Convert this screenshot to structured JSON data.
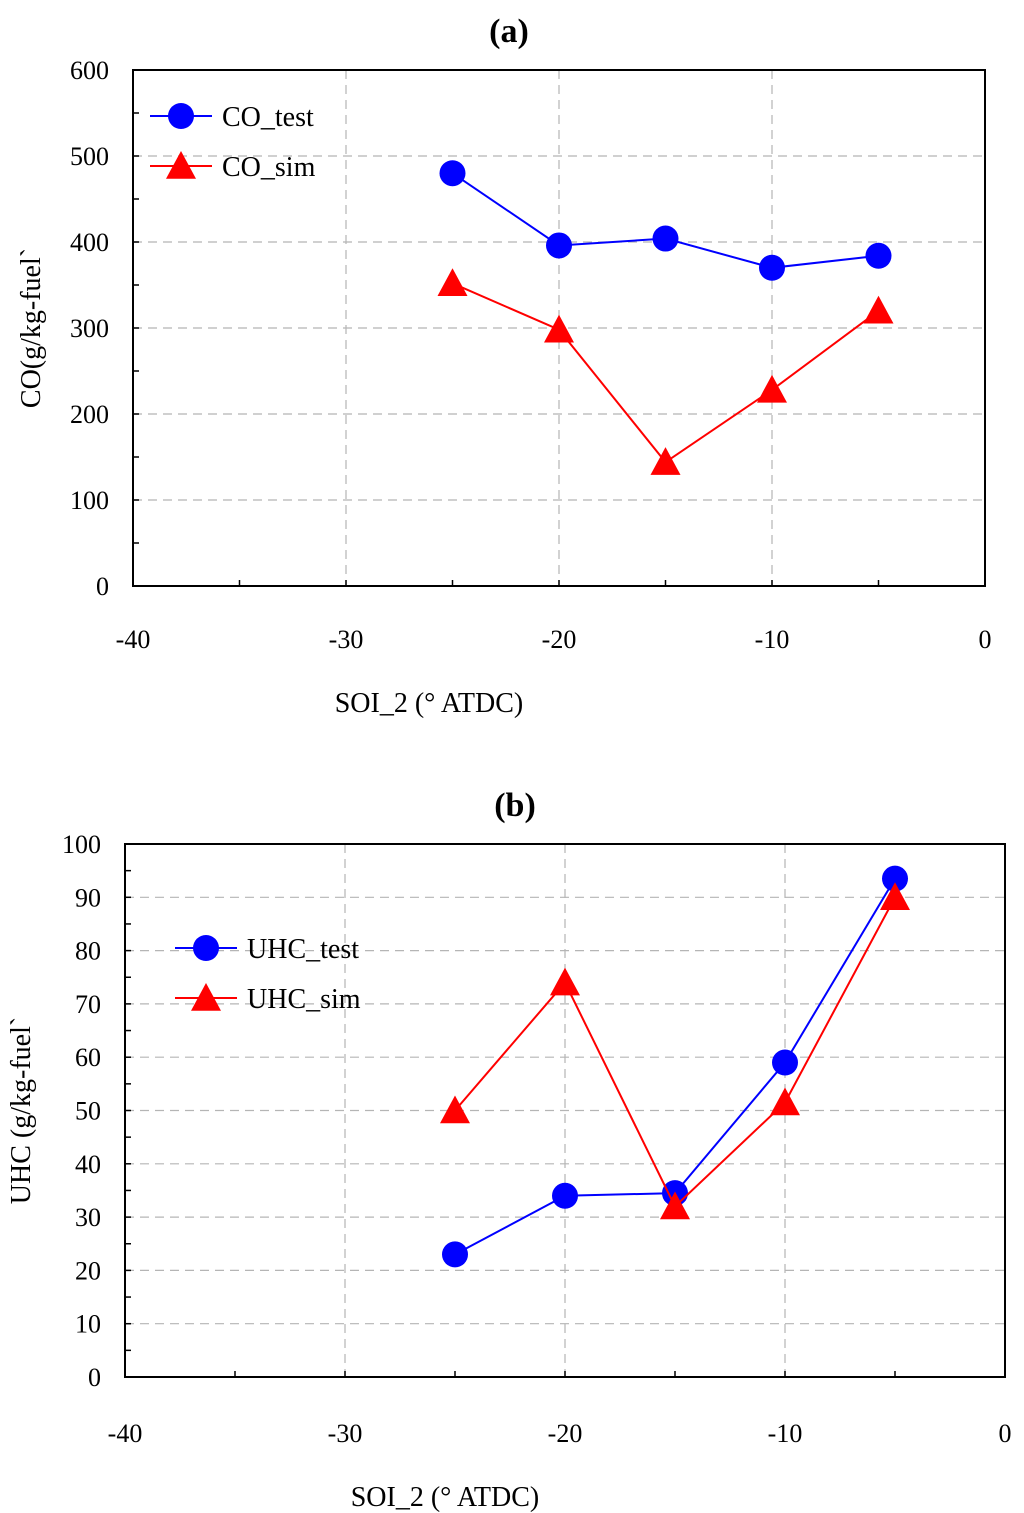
{
  "chart_data": [
    {
      "panel_label": "(a)",
      "type": "line",
      "xlabel": "SOI_2 (° ATDC)",
      "ylabel": "CO(g/kg-fuel`",
      "xlim": [
        -40,
        0
      ],
      "ylim": [
        0,
        600
      ],
      "xticks": [
        "-40",
        "-30",
        "-20",
        "-10",
        "0"
      ],
      "yticks": [
        "0",
        "100",
        "200",
        "300",
        "400",
        "500",
        "600"
      ],
      "x_tick_values": [
        -40,
        -30,
        -20,
        -10,
        0
      ],
      "y_tick_values": [
        0,
        100,
        200,
        300,
        400,
        500,
        600
      ],
      "grid": "dashed",
      "legend_position": "top-left",
      "series": [
        {
          "name": "CO_test",
          "marker": "circle",
          "color": "#0000ff",
          "x": [
            -25,
            -20,
            -15,
            -10,
            -5
          ],
          "y": [
            480,
            396,
            404,
            370,
            384
          ]
        },
        {
          "name": "CO_sim",
          "marker": "triangle",
          "color": "#ff0000",
          "x": [
            -25,
            -20,
            -15,
            -10,
            -5
          ],
          "y": [
            352,
            298,
            144,
            228,
            320
          ]
        }
      ]
    },
    {
      "panel_label": "(b)",
      "type": "line",
      "xlabel": "SOI_2 (° ATDC)",
      "ylabel": "UHC (g/kg-fuel`",
      "xlim": [
        -40,
        0
      ],
      "ylim": [
        0,
        100
      ],
      "xticks": [
        "-40",
        "-30",
        "-20",
        "-10",
        "0"
      ],
      "yticks": [
        "0",
        "10",
        "20",
        "30",
        "40",
        "50",
        "60",
        "70",
        "80",
        "90",
        "100"
      ],
      "x_tick_values": [
        -40,
        -30,
        -20,
        -10,
        0
      ],
      "y_tick_values": [
        0,
        10,
        20,
        30,
        40,
        50,
        60,
        70,
        80,
        90,
        100
      ],
      "grid": "dashed",
      "legend_position": "upper-left",
      "series": [
        {
          "name": "UHC_test",
          "marker": "circle",
          "color": "#0000ff",
          "x": [
            -25,
            -20,
            -15,
            -10,
            -5
          ],
          "y": [
            23,
            34,
            34.5,
            59,
            93.5
          ]
        },
        {
          "name": "UHC_sim",
          "marker": "triangle",
          "color": "#ff0000",
          "x": [
            -25,
            -20,
            -15,
            -10,
            -5
          ],
          "y": [
            50,
            74,
            32,
            51.5,
            90
          ]
        }
      ]
    }
  ]
}
